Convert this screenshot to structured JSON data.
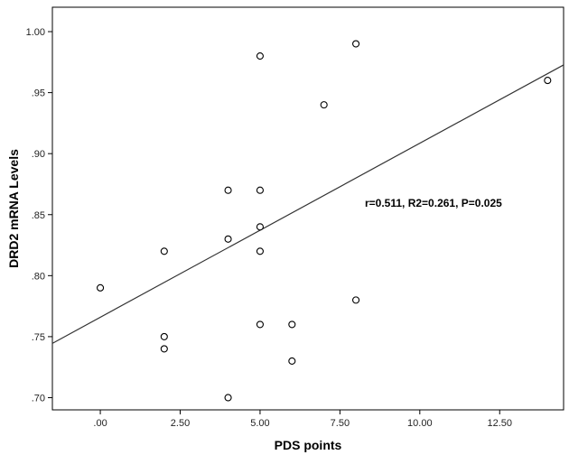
{
  "chart_data": {
    "type": "scatter",
    "xlabel": "PDS points",
    "ylabel": "DRD2 mRNA Levels",
    "x_ticks": [
      ".00",
      "2.50",
      "5.00",
      "7.50",
      "10.00",
      "12.50"
    ],
    "y_ticks": [
      ".70",
      ".75",
      ".80",
      ".85",
      ".90",
      ".95",
      "1.00"
    ],
    "xlim": [
      -1.5,
      14.5
    ],
    "ylim": [
      0.69,
      1.02
    ],
    "points": [
      {
        "x": 0,
        "y": 0.79
      },
      {
        "x": 2,
        "y": 0.82
      },
      {
        "x": 2,
        "y": 0.75
      },
      {
        "x": 2,
        "y": 0.74
      },
      {
        "x": 4,
        "y": 0.87
      },
      {
        "x": 4,
        "y": 0.83
      },
      {
        "x": 4,
        "y": 0.7
      },
      {
        "x": 5,
        "y": 0.98
      },
      {
        "x": 5,
        "y": 0.87
      },
      {
        "x": 5,
        "y": 0.84
      },
      {
        "x": 5,
        "y": 0.82
      },
      {
        "x": 5,
        "y": 0.76
      },
      {
        "x": 6,
        "y": 0.76
      },
      {
        "x": 6,
        "y": 0.73
      },
      {
        "x": 7,
        "y": 0.94
      },
      {
        "x": 8,
        "y": 0.99
      },
      {
        "x": 8,
        "y": 0.78
      },
      {
        "x": 14,
        "y": 0.96
      }
    ],
    "fit_line": {
      "x": [
        -1.5,
        14.5
      ],
      "y": [
        0.7445,
        0.9727
      ]
    },
    "annotation": "r=0.511, R2=0.261, P=0.025",
    "grid": false,
    "legend": "none"
  }
}
